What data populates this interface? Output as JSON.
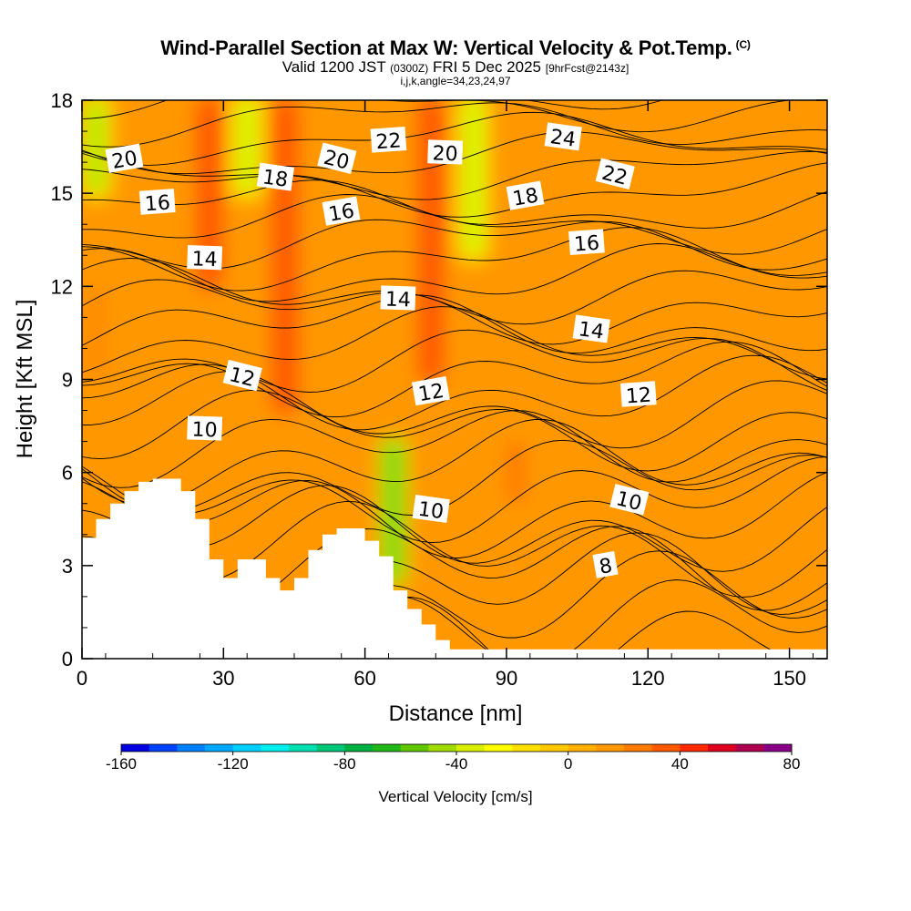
{
  "title": {
    "main": "Wind-Parallel Section at Max W: Vertical Velocity & Pot.Temp.",
    "copyright": "(C)",
    "valid_prefix": "Valid 1200 JST",
    "valid_utc": "(0300Z)",
    "valid_date": "FRI 5 Dec 2025",
    "forecast": "[9hrFcst@2143z]",
    "indices": "i,j,k,angle=34,23,24,97"
  },
  "chart_data": {
    "type": "heatmap",
    "xlabel": "Distance [nm]",
    "ylabel": "Height [Kft MSL]",
    "xlim": [
      0,
      158
    ],
    "ylim": [
      0,
      18
    ],
    "x_ticks": [
      0,
      30,
      60,
      90,
      120,
      150
    ],
    "y_ticks": [
      0,
      3,
      6,
      9,
      12,
      15,
      18
    ],
    "grid": false,
    "shaded_field": "Vertical Velocity [cm/s]",
    "contour_field": "Potential temperature",
    "colorbar": {
      "label": "Vertical Velocity [cm/s]",
      "min": -160,
      "max": 80,
      "step": 10,
      "tick_labels": [
        "-160",
        "-120",
        "-80",
        "-40",
        "0",
        "40",
        "80"
      ],
      "colors": [
        "#0000e0",
        "#0040ff",
        "#0080ff",
        "#00a8ff",
        "#00d0ff",
        "#00f0f0",
        "#00e0b0",
        "#00c878",
        "#00b040",
        "#20b818",
        "#60c800",
        "#a0dc00",
        "#d8f000",
        "#ffff00",
        "#ffe000",
        "#ffc800",
        "#ffb000",
        "#ff9800",
        "#ff7c00",
        "#ff5a00",
        "#ff2800",
        "#e00020",
        "#b00050",
        "#880088"
      ]
    },
    "velocity_updrafts": [
      {
        "x": 3,
        "z_range": [
          9,
          12
        ],
        "w": 20
      },
      {
        "x": 27,
        "z_range": [
          12,
          18
        ],
        "w": 40
      },
      {
        "x": 43,
        "z_range": [
          8,
          18
        ],
        "w": 40
      },
      {
        "x": 74,
        "z_range": [
          9,
          18
        ],
        "w": 40
      },
      {
        "x": 92,
        "z_range": [
          5,
          7
        ],
        "w": 30
      }
    ],
    "velocity_downdrafts": [
      {
        "x": 3,
        "z_range": [
          15,
          18
        ],
        "w": -60
      },
      {
        "x": 35,
        "z_range": [
          15,
          18
        ],
        "w": -50
      },
      {
        "x": 66,
        "z_range": [
          2.5,
          7
        ],
        "w": -70
      },
      {
        "x": 83,
        "z_range": [
          13,
          18
        ],
        "w": -50
      }
    ],
    "theta_contour_labels": [
      {
        "text": "20",
        "x": 9,
        "z": 16.1
      },
      {
        "text": "16",
        "x": 16,
        "z": 14.7
      },
      {
        "text": "14",
        "x": 26,
        "z": 12.9
      },
      {
        "text": "18",
        "x": 41,
        "z": 15.5
      },
      {
        "text": "20",
        "x": 54,
        "z": 16.1
      },
      {
        "text": "16",
        "x": 55,
        "z": 14.4
      },
      {
        "text": "22",
        "x": 65,
        "z": 16.7
      },
      {
        "text": "20",
        "x": 77,
        "z": 16.3
      },
      {
        "text": "24",
        "x": 102,
        "z": 16.8
      },
      {
        "text": "22",
        "x": 113,
        "z": 15.6
      },
      {
        "text": "18",
        "x": 94,
        "z": 14.9
      },
      {
        "text": "16",
        "x": 107,
        "z": 13.4
      },
      {
        "text": "14",
        "x": 67,
        "z": 11.6
      },
      {
        "text": "14",
        "x": 108,
        "z": 10.6
      },
      {
        "text": "12",
        "x": 34,
        "z": 9.1
      },
      {
        "text": "12",
        "x": 74,
        "z": 8.6
      },
      {
        "text": "12",
        "x": 118,
        "z": 8.5
      },
      {
        "text": "10",
        "x": 26,
        "z": 7.4
      },
      {
        "text": "10",
        "x": 74,
        "z": 4.8
      },
      {
        "text": "10",
        "x": 116,
        "z": 5.1
      },
      {
        "text": "8",
        "x": 111,
        "z": 3.0
      }
    ],
    "terrain_profile": {
      "x": [
        0,
        3,
        3,
        6,
        6,
        9,
        9,
        12,
        12,
        15,
        15,
        21,
        21,
        24,
        24,
        27,
        27,
        30,
        30,
        33,
        33,
        39,
        39,
        42,
        42,
        45,
        45,
        48,
        48,
        51,
        51,
        54,
        54,
        60,
        60,
        63,
        63,
        66,
        66,
        69,
        69,
        72,
        72,
        75,
        75,
        78,
        78,
        81,
        81,
        84,
        84,
        158
      ],
      "z": [
        3.9,
        3.9,
        4.5,
        4.5,
        5.0,
        5.0,
        5.4,
        5.4,
        5.7,
        5.7,
        5.8,
        5.8,
        5.4,
        5.4,
        4.5,
        4.5,
        3.2,
        3.2,
        2.6,
        2.6,
        3.2,
        3.2,
        2.6,
        2.6,
        2.2,
        2.2,
        2.6,
        2.6,
        3.5,
        3.5,
        4.0,
        4.0,
        4.2,
        4.2,
        3.8,
        3.8,
        3.3,
        3.3,
        2.2,
        2.2,
        1.6,
        1.6,
        1.1,
        1.1,
        0.6,
        0.6,
        0.3,
        0.3,
        0.3,
        0.3,
        0.3,
        0.3
      ]
    }
  }
}
